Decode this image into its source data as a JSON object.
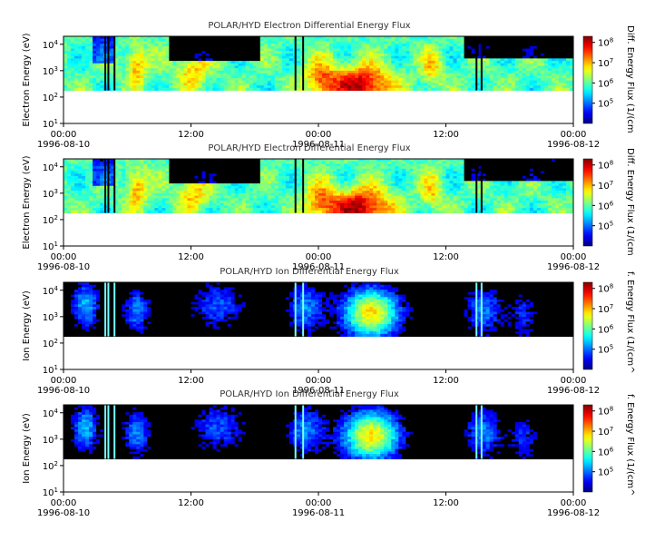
{
  "chart_data": [
    {
      "type": "heatmap",
      "title": "POLAR/HYD  Electron Differential Energy Flux",
      "ylabel": "Electron Energy (eV)",
      "colorbar_label": "Diff. Energy Flux (1/(cm",
      "y_scale": "log",
      "ylim": [
        10,
        20000
      ],
      "y_ticks": [
        {
          "base": "10",
          "exp": "1"
        },
        {
          "base": "10",
          "exp": "2"
        },
        {
          "base": "10",
          "exp": "3"
        },
        {
          "base": "10",
          "exp": "4"
        }
      ],
      "x_ticks": [
        {
          "time": "00:00",
          "date": "1996-08-10"
        },
        {
          "time": "12:00",
          "date": ""
        },
        {
          "time": "00:00",
          "date": "1996-08-11"
        },
        {
          "time": "12:00",
          "date": ""
        },
        {
          "time": "00:00",
          "date": "1996-08-12"
        }
      ],
      "color_scale": "log",
      "color_range": [
        10000,
        200000000
      ],
      "colorbar_ticks": [
        {
          "base": "10",
          "exp": "5"
        },
        {
          "base": "10",
          "exp": "6"
        },
        {
          "base": "10",
          "exp": "7"
        },
        {
          "base": "10",
          "exp": "8"
        }
      ]
    },
    {
      "type": "heatmap",
      "title": "POLAR/HYD  Electron Differential Energy Flux",
      "ylabel": "Electron Energy (eV)",
      "colorbar_label": "Diff. Energy Flux (1/(cm",
      "y_scale": "log",
      "ylim": [
        10,
        20000
      ],
      "y_ticks": [
        {
          "base": "10",
          "exp": "1"
        },
        {
          "base": "10",
          "exp": "2"
        },
        {
          "base": "10",
          "exp": "3"
        },
        {
          "base": "10",
          "exp": "4"
        }
      ],
      "x_ticks": [
        {
          "time": "00:00",
          "date": "1996-08-10"
        },
        {
          "time": "12:00",
          "date": ""
        },
        {
          "time": "00:00",
          "date": "1996-08-11"
        },
        {
          "time": "12:00",
          "date": ""
        },
        {
          "time": "00:00",
          "date": "1996-08-12"
        }
      ],
      "color_scale": "log",
      "color_range": [
        10000,
        200000000
      ],
      "colorbar_ticks": [
        {
          "base": "10",
          "exp": "5"
        },
        {
          "base": "10",
          "exp": "6"
        },
        {
          "base": "10",
          "exp": "7"
        },
        {
          "base": "10",
          "exp": "8"
        }
      ]
    },
    {
      "type": "heatmap",
      "title": "POLAR/HYD  Ion Differential Energy Flux",
      "ylabel": "Ion Energy (eV)",
      "colorbar_label": "f. Energy Flux (1/(cm^",
      "y_scale": "log",
      "ylim": [
        10,
        20000
      ],
      "y_ticks": [
        {
          "base": "10",
          "exp": "1"
        },
        {
          "base": "10",
          "exp": "2"
        },
        {
          "base": "10",
          "exp": "3"
        },
        {
          "base": "10",
          "exp": "4"
        }
      ],
      "x_ticks": [
        {
          "time": "00:00",
          "date": "1996-08-10"
        },
        {
          "time": "12:00",
          "date": ""
        },
        {
          "time": "00:00",
          "date": "1996-08-11"
        },
        {
          "time": "12:00",
          "date": ""
        },
        {
          "time": "00:00",
          "date": "1996-08-12"
        }
      ],
      "color_scale": "log",
      "color_range": [
        10000,
        200000000
      ],
      "colorbar_ticks": [
        {
          "base": "10",
          "exp": "5"
        },
        {
          "base": "10",
          "exp": "6"
        },
        {
          "base": "10",
          "exp": "7"
        },
        {
          "base": "10",
          "exp": "8"
        }
      ]
    },
    {
      "type": "heatmap",
      "title": "POLAR/HYD  Ion Differential Energy Flux",
      "ylabel": "Ion Energy (eV)",
      "colorbar_label": "f. Energy Flux (1/(cm^",
      "y_scale": "log",
      "ylim": [
        10,
        20000
      ],
      "y_ticks": [
        {
          "base": "10",
          "exp": "1"
        },
        {
          "base": "10",
          "exp": "2"
        },
        {
          "base": "10",
          "exp": "3"
        },
        {
          "base": "10",
          "exp": "4"
        }
      ],
      "x_ticks": [
        {
          "time": "00:00",
          "date": "1996-08-10"
        },
        {
          "time": "12:00",
          "date": ""
        },
        {
          "time": "00:00",
          "date": "1996-08-11"
        },
        {
          "time": "12:00",
          "date": ""
        },
        {
          "time": "00:00",
          "date": "1996-08-12"
        }
      ],
      "color_scale": "log",
      "color_range": [
        10000,
        200000000
      ],
      "colorbar_ticks": [
        {
          "base": "10",
          "exp": "5"
        },
        {
          "base": "10",
          "exp": "6"
        },
        {
          "base": "10",
          "exp": "7"
        },
        {
          "base": "10",
          "exp": "8"
        }
      ]
    }
  ]
}
